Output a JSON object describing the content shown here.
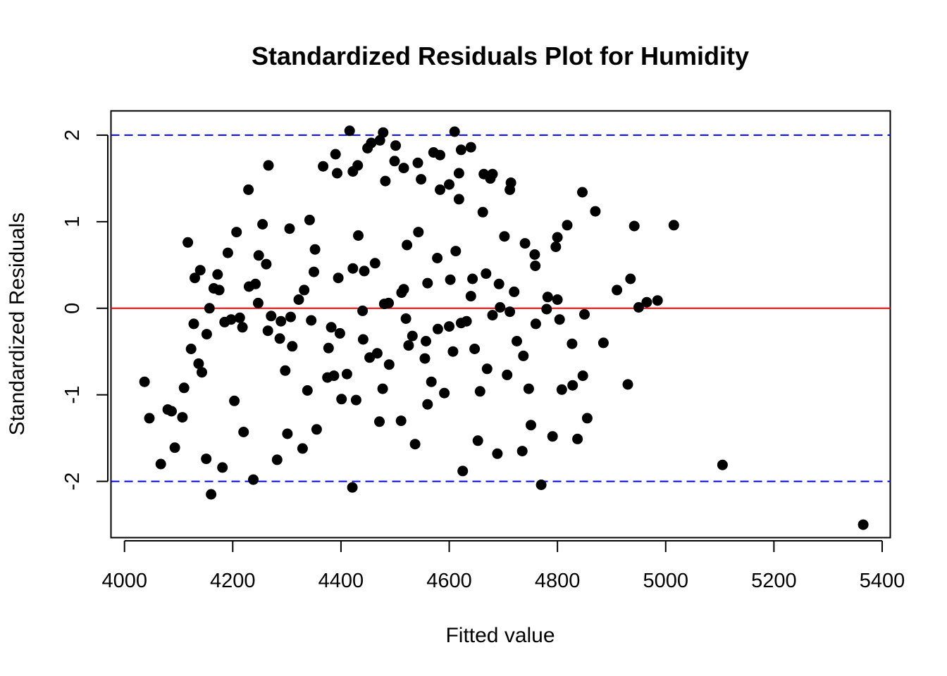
{
  "chart_data": {
    "type": "scatter",
    "title": "Standardized Residuals Plot for Humidity",
    "xlabel": "Fitted value",
    "ylabel": "Standardized Residuals",
    "xlim": [
      3975,
      5415
    ],
    "ylim": [
      -2.65,
      2.28
    ],
    "x_ticks": [
      "4000",
      "4200",
      "4400",
      "4600",
      "4800",
      "5000",
      "5200",
      "5400"
    ],
    "y_ticks": [
      "-2",
      "-1",
      "0",
      "1",
      "2"
    ],
    "grid": false,
    "point_color": "#000000",
    "reference_lines": [
      {
        "y": 2,
        "color": "#0000ff",
        "style": "dashed"
      },
      {
        "y": -2,
        "color": "#0000ff",
        "style": "dashed"
      },
      {
        "y": 0,
        "color": "#ff0000",
        "style": "solid"
      }
    ],
    "x": [
      4037,
      4046,
      4067,
      4080,
      4093,
      4107,
      4117,
      4123,
      4130,
      4137,
      4143,
      4151,
      4160,
      4165,
      4175,
      4181,
      4191,
      4203,
      4213,
      4220,
      4229,
      4238,
      4248,
      4255,
      4266,
      4271,
      4282,
      4289,
      4301,
      4310,
      4322,
      4329,
      4338,
      4350,
      4355,
      4367,
      4375,
      4382,
      4393,
      4401,
      4411,
      4421,
      4428,
      4441,
      4449,
      4453,
      4463,
      4471,
      4478,
      4489,
      4499,
      4511,
      4516,
      4525,
      4537,
      4543,
      4555,
      4560,
      4571,
      4579,
      4591,
      4600,
      4607,
      4618,
      4625,
      4632,
      4643,
      4653,
      4662,
      4670,
      4680,
      4689,
      4694,
      4707,
      4714,
      4725,
      4735,
      4740,
      4751,
      4759,
      4770,
      4780,
      4791,
      4800,
      4808,
      4818,
      4828,
      4837,
      4846,
      4855,
      4870,
      4885,
      4910,
      4935,
      4950,
      4965,
      4985,
      5015,
      5105,
      5365,
      4110,
      4140,
      4185,
      4230,
      4265,
      4305,
      4345,
      4395,
      4440,
      4480,
      4520,
      4560,
      4600,
      4640,
      4680,
      4720,
      4760,
      4800,
      4850,
      4930,
      4128,
      4172,
      4218,
      4262,
      4307,
      4352,
      4398,
      4443,
      4488,
      4532,
      4578,
      4622,
      4668,
      4712,
      4758,
      4804,
      4152,
      4197,
      4242,
      4287,
      4332,
      4377,
      4422,
      4467,
      4512,
      4557,
      4602,
      4647,
      4692,
      4737,
      4782,
      4827,
      4942,
      4087,
      4157,
      4207,
      4247,
      4297,
      4342,
      4387,
      4432,
      4477,
      4522,
      4567,
      4612,
      4657,
      4702,
      4747,
      4797,
      4847,
      4422,
      4482,
      4516,
      4548,
      4583,
      4618,
      4676,
      4712,
      4456,
      4390,
      4542,
      4583,
      4622,
      4664,
      4416,
      4472,
      4501,
      4640,
      4610,
      4431
    ],
    "y": [
      -0.85,
      -1.27,
      -1.8,
      -1.17,
      -1.61,
      -1.26,
      0.76,
      -0.47,
      0.35,
      -0.64,
      -0.74,
      -1.74,
      -2.15,
      0.23,
      0.21,
      -1.84,
      0.64,
      -1.07,
      -0.11,
      -1.43,
      1.37,
      -1.98,
      0.61,
      0.97,
      1.65,
      -0.09,
      -1.75,
      -0.15,
      -1.45,
      -0.44,
      0.1,
      -1.62,
      -0.95,
      0.42,
      -1.4,
      1.64,
      -0.8,
      -0.22,
      1.56,
      -1.05,
      -0.76,
      -2.07,
      -1.06,
      -0.36,
      1.85,
      -0.57,
      0.52,
      -1.31,
      2.03,
      -0.65,
      1.7,
      -1.3,
      0.22,
      -0.43,
      -1.57,
      0.88,
      -0.58,
      -1.11,
      1.8,
      -0.24,
      -0.98,
      1.43,
      -0.5,
      1.26,
      -1.88,
      -0.15,
      0.34,
      -1.53,
      1.11,
      -0.7,
      1.55,
      -1.68,
      0.01,
      -0.77,
      1.45,
      -0.38,
      -1.65,
      0.75,
      -1.35,
      0.49,
      -2.04,
      -0.01,
      -1.48,
      0.82,
      -0.94,
      0.96,
      -0.89,
      -1.51,
      1.34,
      -1.27,
      1.12,
      -0.4,
      0.21,
      0.34,
      0.01,
      0.07,
      0.09,
      0.96,
      -1.81,
      -2.5,
      -0.92,
      0.44,
      -0.16,
      0.25,
      -0.26,
      0.92,
      -0.14,
      0.35,
      -0.03,
      0.05,
      -0.12,
      0.29,
      -0.21,
      0.14,
      -0.08,
      0.19,
      -0.18,
      0.1,
      -0.07,
      -0.88,
      -0.18,
      0.39,
      -0.22,
      0.51,
      -0.1,
      0.68,
      -0.29,
      0.43,
      0.06,
      -0.32,
      0.58,
      -0.17,
      0.4,
      -0.04,
      0.62,
      -0.13,
      -0.3,
      -0.13,
      0.28,
      -0.35,
      0.21,
      -0.46,
      0.46,
      -0.52,
      0.18,
      -0.38,
      0.33,
      -0.47,
      0.28,
      -0.55,
      0.13,
      -0.41,
      0.95,
      -1.19,
      0.0,
      0.88,
      0.06,
      -0.72,
      1.02,
      -0.78,
      0.84,
      -0.93,
      0.73,
      -0.85,
      0.66,
      -0.96,
      0.83,
      -0.93,
      0.71,
      -0.78,
      1.58,
      1.47,
      1.62,
      1.49,
      1.37,
      1.56,
      1.5,
      1.37,
      1.91,
      1.78,
      1.68,
      1.77,
      1.83,
      1.55,
      2.05,
      1.94,
      1.88,
      1.86,
      2.04,
      1.65
    ]
  }
}
